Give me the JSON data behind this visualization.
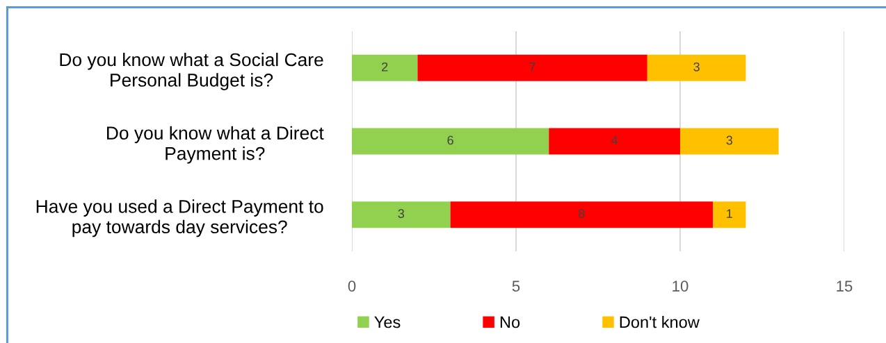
{
  "chart_data": {
    "type": "bar",
    "orientation": "horizontal",
    "stacked": true,
    "categories": [
      "Do you know what a Social Care\nPersonal Budget is?",
      "Do you know what a Direct\nPayment is?",
      "Have you used a Direct Payment to\npay towards day services?"
    ],
    "series": [
      {
        "name": "Yes",
        "color": "#92d050",
        "values": [
          2,
          6,
          3
        ]
      },
      {
        "name": "No",
        "color": "#ff0000",
        "values": [
          7,
          4,
          8
        ]
      },
      {
        "name": "Don't know",
        "color": "#ffc000",
        "values": [
          3,
          3,
          1
        ]
      }
    ],
    "xlim": [
      0,
      15
    ],
    "xticks": [
      0,
      5,
      10,
      15
    ],
    "grid": "x",
    "legend": "bottom",
    "data_labels": true
  }
}
